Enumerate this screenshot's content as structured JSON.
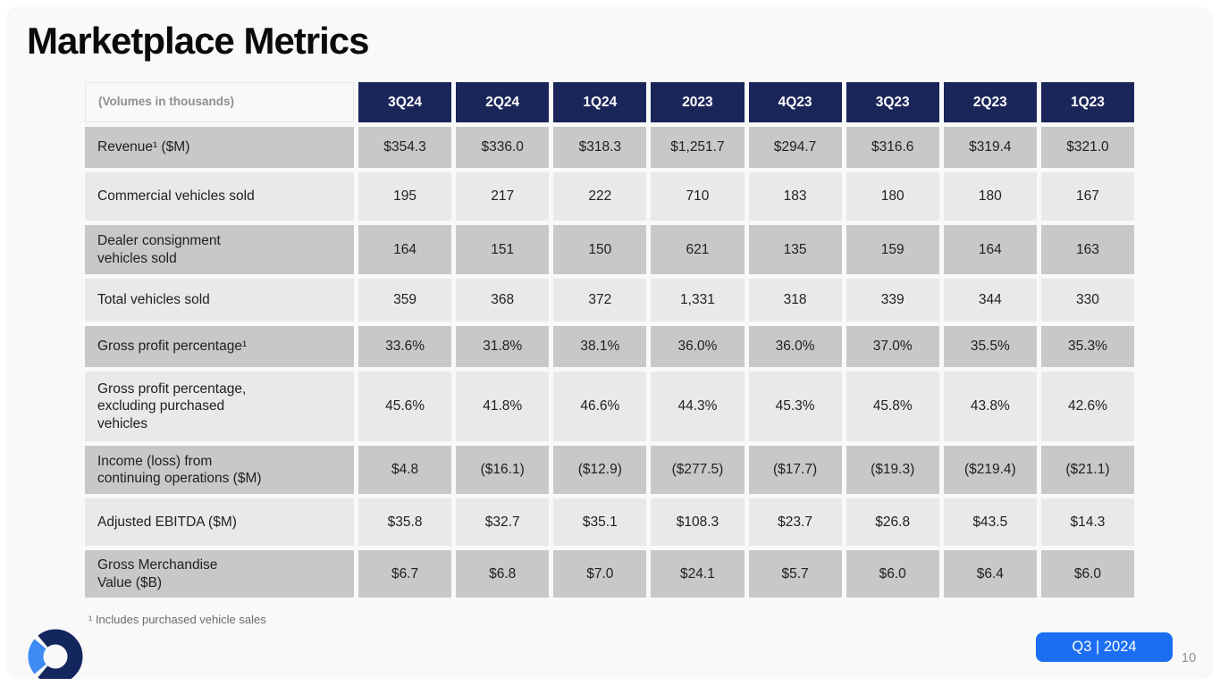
{
  "slide": {
    "title": "Marketplace Metrics",
    "footnote": "¹ Includes purchased vehicle sales",
    "badge_label": "Q3 | 2024",
    "page_number": "10"
  },
  "table": {
    "corner_label": "(Volumes in thousands)",
    "columns": [
      "3Q24",
      "2Q24",
      "1Q24",
      "2023",
      "4Q23",
      "3Q23",
      "2Q23",
      "1Q23"
    ],
    "rows": [
      {
        "label": "Revenue¹ ($M)",
        "values": [
          "$354.3",
          "$336.0",
          "$318.3",
          "$1,251.7",
          "$294.7",
          "$316.6",
          "$319.4",
          "$321.0"
        ]
      },
      {
        "label": "Commercial vehicles sold",
        "values": [
          "195",
          "217",
          "222",
          "710",
          "183",
          "180",
          "180",
          "167"
        ]
      },
      {
        "label": "Dealer consignment\nvehicles sold",
        "values": [
          "164",
          "151",
          "150",
          "621",
          "135",
          "159",
          "164",
          "163"
        ]
      },
      {
        "label": "Total vehicles sold",
        "values": [
          "359",
          "368",
          "372",
          "1,331",
          "318",
          "339",
          "344",
          "330"
        ]
      },
      {
        "label": "Gross profit percentage¹",
        "values": [
          "33.6%",
          "31.8%",
          "38.1%",
          "36.0%",
          "36.0%",
          "37.0%",
          "35.5%",
          "35.3%"
        ]
      },
      {
        "label": "Gross profit percentage,\nexcluding purchased\nvehicles",
        "values": [
          "45.6%",
          "41.8%",
          "46.6%",
          "44.3%",
          "45.3%",
          "45.8%",
          "43.8%",
          "42.6%"
        ]
      },
      {
        "label": "Income (loss) from\ncontinuing operations ($M)",
        "values": [
          "$4.8",
          "($16.1)",
          "($12.9)",
          "($277.5)",
          "($17.7)",
          "($19.3)",
          "($219.4)",
          "($21.1)"
        ]
      },
      {
        "label": "Adjusted EBITDA ($M)",
        "values": [
          "$35.8",
          "$32.7",
          "$35.1",
          "$108.3",
          "$23.7",
          "$26.8",
          "$43.5",
          "$14.3"
        ]
      },
      {
        "label": "Gross Merchandise\nValue ($B)",
        "values": [
          "$6.7",
          "$6.8",
          "$7.0",
          "$24.1",
          "$5.7",
          "$6.0",
          "$6.4",
          "$6.0"
        ]
      }
    ]
  },
  "colors": {
    "header_navy": "#1a2559",
    "row_dark": "#c8c8c6",
    "row_light": "#e9e9e8",
    "badge_blue": "#1b6ef2",
    "logo_navy": "#14265e",
    "logo_blue": "#3e8bf4"
  }
}
